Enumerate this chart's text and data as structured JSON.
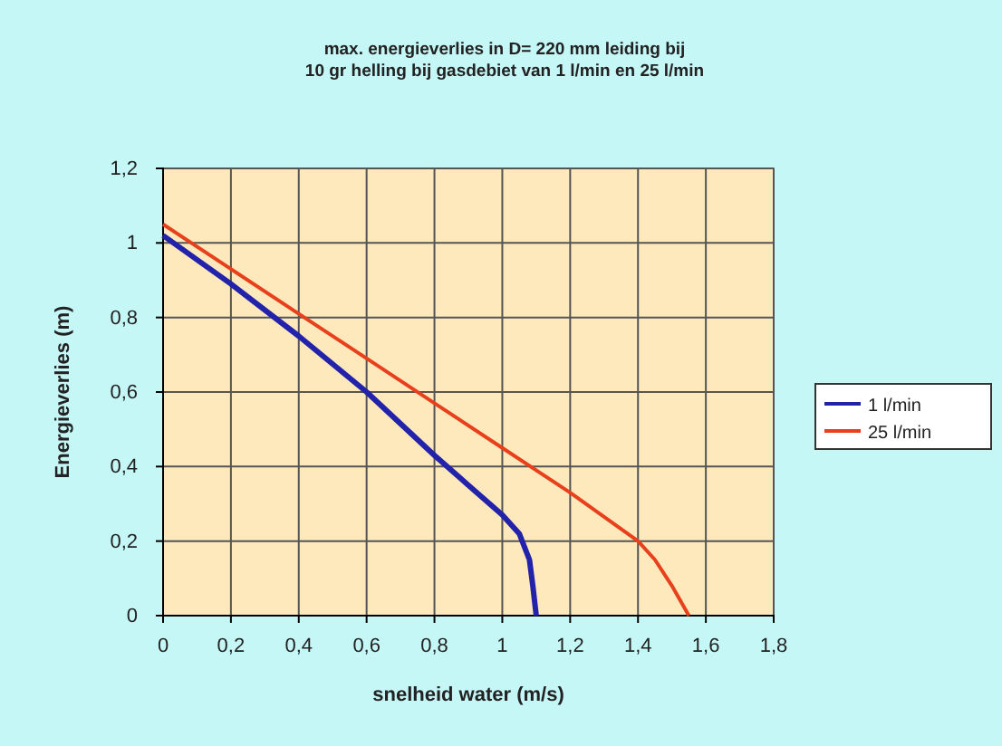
{
  "chart_data": {
    "type": "line",
    "title": "max. energieverlies in D= 220 mm leiding bij\n10 gr helling bij gasdebiet van 1 l/min en 25 l/min",
    "xlabel": "snelheid water (m/s)",
    "ylabel": "Energieverlies (m)",
    "xlim": [
      0,
      1.8
    ],
    "ylim": [
      0,
      1.2
    ],
    "xticks": [
      0,
      {
        "value": 0.2,
        "label": "0,2"
      },
      {
        "value": 0.4,
        "label": "0,4"
      },
      {
        "value": 0.6,
        "label": "0,6"
      },
      {
        "value": 0.8,
        "label": "0,8"
      },
      1,
      {
        "value": 1.2,
        "label": "1,2"
      },
      {
        "value": 1.4,
        "label": "1,4"
      },
      {
        "value": 1.6,
        "label": "1,6"
      },
      {
        "value": 1.8,
        "label": "1,8"
      }
    ],
    "yticks": [
      0,
      {
        "value": 0.2,
        "label": "0,2"
      },
      {
        "value": 0.4,
        "label": "0,4"
      },
      {
        "value": 0.6,
        "label": "0,6"
      },
      {
        "value": 0.8,
        "label": "0,8"
      },
      1,
      {
        "value": 1.2,
        "label": "1,2"
      }
    ],
    "grid": true,
    "legend": "right",
    "marker": "none",
    "line_style": "solid",
    "series": [
      {
        "name": "1 l/min",
        "color": "#2222aa",
        "x": [
          0,
          0.2,
          0.4,
          0.6,
          0.8,
          0.9,
          1.0,
          1.05,
          1.08,
          1.09,
          1.1
        ],
        "values": [
          1.02,
          0.89,
          0.75,
          0.6,
          0.43,
          0.35,
          0.27,
          0.22,
          0.15,
          0.08,
          0
        ]
      },
      {
        "name": "25 l/min",
        "color": "#e8401c",
        "x": [
          0,
          0.2,
          0.4,
          0.6,
          0.8,
          1.0,
          1.2,
          1.4,
          1.45,
          1.5,
          1.55
        ],
        "values": [
          1.05,
          0.93,
          0.81,
          0.69,
          0.57,
          0.45,
          0.33,
          0.2,
          0.15,
          0.08,
          0
        ]
      }
    ]
  }
}
